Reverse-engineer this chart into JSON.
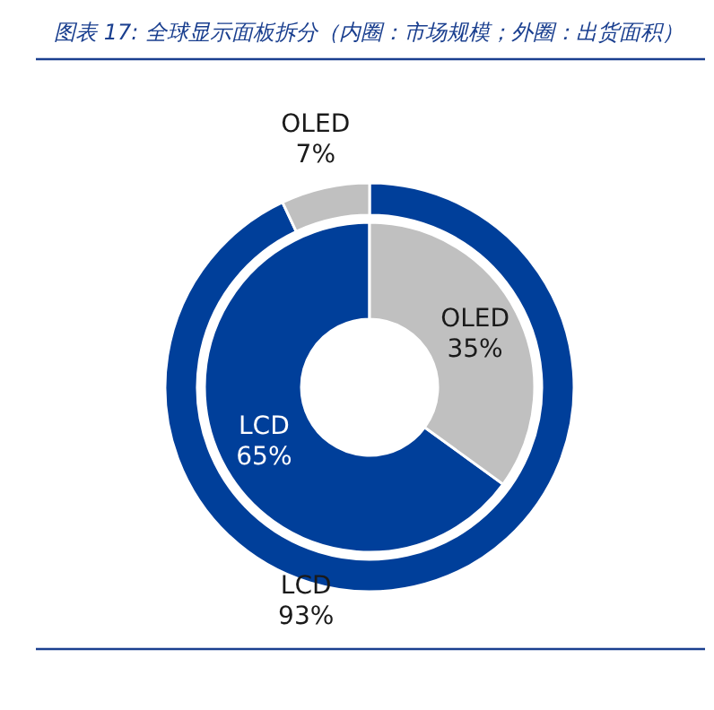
{
  "chart_data": {
    "type": "donut",
    "title": "图表 17: 全球显示面板拆分（内圈：市场规模；外圈：出货面积）",
    "categories": [
      "LCD",
      "OLED"
    ],
    "colors": [
      "#003f9a",
      "#c0c0c0"
    ],
    "series": [
      {
        "values": [
          93,
          7
        ],
        "value_labels": [
          "93%",
          "7%"
        ]
      },
      {
        "values": [
          65,
          35
        ],
        "value_labels": [
          "65%",
          "35%"
        ]
      }
    ]
  }
}
